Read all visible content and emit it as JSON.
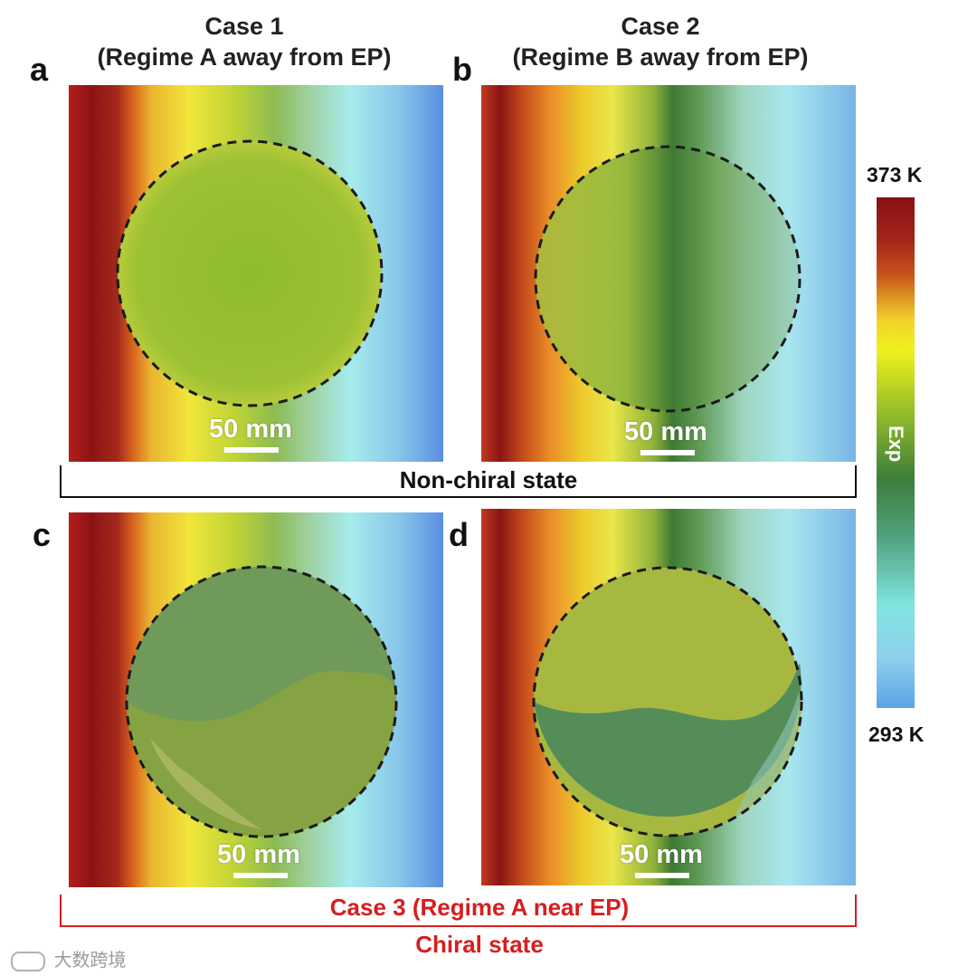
{
  "headers": {
    "case1": "Case 1",
    "case1_sub": "(Regime A away from EP)",
    "case2": "Case 2",
    "case2_sub": "(Regime B away from EP)"
  },
  "panels": [
    {
      "label": "a",
      "scale": "50 mm"
    },
    {
      "label": "b",
      "scale": "50 mm"
    },
    {
      "label": "c",
      "scale": "50 mm"
    },
    {
      "label": "d",
      "scale": "50 mm"
    }
  ],
  "states": {
    "non_chiral": "Non-chiral state",
    "case3": "Case 3 (Regime A near EP)",
    "chiral": "Chiral state"
  },
  "colorbar": {
    "max": "373 K",
    "min": "293 K",
    "label": "Exp",
    "colors": [
      "#8a0f12",
      "#c7521a",
      "#f3d22a",
      "#eef21c",
      "#8fb92a",
      "#3d7e3a",
      "#4fa07a",
      "#7fe5df",
      "#5aa4e6"
    ]
  },
  "watermark": "大数跨境",
  "colors": {
    "accent_red": "#d61e1e"
  }
}
